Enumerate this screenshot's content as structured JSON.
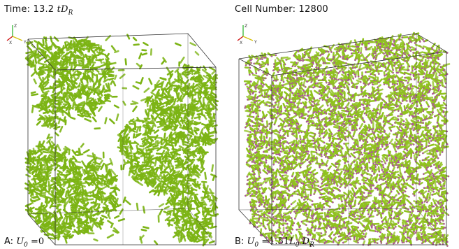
{
  "header": {
    "time_prefix": "Time: 13.2 ",
    "time_math": "tD",
    "time_sub": "R",
    "cell_label": "Cell Number: 12800"
  },
  "panels": [
    {
      "id": "A",
      "label_prefix": "A: ",
      "math_main": "U",
      "math_sub": "0",
      "math_rest": " =0",
      "rod_color": "#7cb414",
      "tip_color": "#7cb414",
      "pattern": "clustered"
    },
    {
      "id": "B",
      "label_prefix": "B: ",
      "math_main": "U",
      "math_sub": "0",
      "math_rest": " =1.51",
      "math_l": "L",
      "math_l_sub": "0",
      "math_d": " D",
      "math_d_sub": "R",
      "rod_color": "#8fc21e",
      "tip_color": "#b04aa8",
      "pattern": "uniform"
    }
  ],
  "axes_labels": {
    "x": "X",
    "y": "Y",
    "z": "Z"
  },
  "colors": {
    "x_axis": "#d01010",
    "y_axis": "#d6c210",
    "z_axis": "#20b020",
    "box": "#333333"
  }
}
